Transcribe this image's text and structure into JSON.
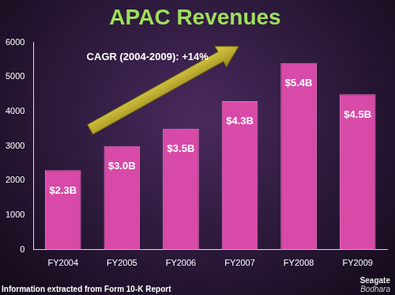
{
  "chart_data": {
    "type": "bar",
    "title": "APAC Revenues",
    "categories": [
      "FY2004",
      "FY2005",
      "FY2006",
      "FY2007",
      "FY2008",
      "FY2009"
    ],
    "values": [
      2300,
      3000,
      3500,
      4300,
      5400,
      4500
    ],
    "value_labels": [
      "$2.3B",
      "$3.0B",
      "$3.5B",
      "$4.3B",
      "$5.4B",
      "$4.5B"
    ],
    "data_labels": true,
    "color": "#d84aa8",
    "ylim": [
      0,
      6000
    ],
    "yticks": [
      0,
      1000,
      2000,
      3000,
      4000,
      5000,
      6000
    ],
    "grid": false,
    "annotations": [
      "CAGR (2004-2009): +14%"
    ],
    "source": "Information extracted from Form 10-K Report",
    "branding": [
      "Seagate",
      "Bodhara"
    ]
  }
}
